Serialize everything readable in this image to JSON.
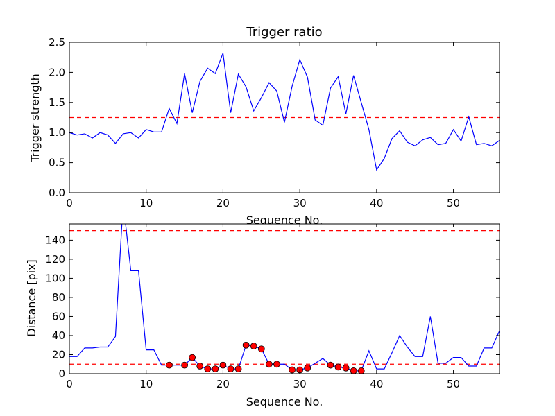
{
  "chart_data": [
    {
      "type": "line",
      "title": "Trigger ratio",
      "xlabel": "Sequence No.",
      "ylabel": "Trigger strength",
      "xlim": [
        0,
        56
      ],
      "ylim": [
        0,
        2.5
      ],
      "x_ticks": [
        0,
        10,
        20,
        30,
        40,
        50
      ],
      "y_ticks": [
        "0.0",
        "0.5",
        "1.0",
        "1.5",
        "2.0",
        "2.5"
      ],
      "grid": false,
      "threshold": 1.25,
      "series": [
        {
          "color": "#0000ff",
          "x": [
            0,
            1,
            2,
            3,
            4,
            5,
            6,
            7,
            8,
            9,
            10,
            11,
            12,
            13,
            14,
            15,
            16,
            17,
            18,
            19,
            20,
            21,
            22,
            23,
            24,
            25,
            26,
            27,
            28,
            29,
            30,
            31,
            32,
            33,
            34,
            35,
            36,
            37,
            38,
            39,
            40,
            41,
            42,
            43,
            44,
            45,
            46,
            47,
            48,
            49,
            50,
            51,
            52,
            53,
            54,
            55,
            56
          ],
          "y": [
            1.0,
            0.96,
            0.98,
            0.91,
            1.0,
            0.96,
            0.82,
            0.98,
            1.0,
            0.91,
            1.05,
            1.01,
            1.01,
            1.4,
            1.15,
            1.98,
            1.33,
            1.85,
            2.07,
            1.98,
            2.32,
            1.33,
            1.97,
            1.76,
            1.36,
            1.58,
            1.83,
            1.69,
            1.17,
            1.77,
            2.21,
            1.92,
            1.21,
            1.12,
            1.74,
            1.93,
            1.31,
            1.95,
            1.5,
            1.05,
            0.38,
            0.57,
            0.9,
            1.03,
            0.84,
            0.78,
            0.88,
            0.92,
            0.8,
            0.82,
            1.05,
            0.86,
            1.26,
            0.8,
            0.82,
            0.78,
            0.87
          ]
        }
      ]
    },
    {
      "type": "line",
      "title": "",
      "xlabel": "Sequence No.",
      "ylabel": "Distance [pix]",
      "xlim": [
        0,
        56
      ],
      "ylim": [
        0,
        157
      ],
      "x_ticks": [
        0,
        10,
        20,
        30,
        40,
        50
      ],
      "y_ticks": [
        0,
        20,
        40,
        60,
        80,
        100,
        120,
        140
      ],
      "grid": false,
      "thresholds": [
        10,
        150
      ],
      "series": [
        {
          "color": "#0000ff",
          "x": [
            0,
            1,
            2,
            3,
            4,
            5,
            6,
            7,
            8,
            9,
            10,
            11,
            12,
            13,
            14,
            15,
            16,
            17,
            18,
            19,
            20,
            21,
            22,
            23,
            24,
            25,
            26,
            27,
            28,
            29,
            30,
            31,
            32,
            33,
            34,
            35,
            36,
            37,
            38,
            39,
            40,
            41,
            42,
            43,
            44,
            45,
            46,
            47,
            48,
            49,
            50,
            51,
            52,
            53,
            54,
            55,
            56
          ],
          "y": [
            18,
            18,
            27,
            27,
            28,
            28,
            39,
            180,
            108,
            108,
            25,
            25,
            9,
            9,
            9,
            9,
            17,
            8,
            5,
            5,
            9,
            5,
            5,
            30,
            29,
            26,
            10,
            10,
            10,
            4,
            4,
            6,
            11,
            16,
            9,
            7,
            6,
            3,
            3,
            24,
            5,
            5,
            22,
            40,
            28,
            18,
            18,
            60,
            11,
            11,
            17,
            17,
            8,
            8,
            27,
            27,
            45
          ]
        },
        {
          "type": "scatter",
          "color": "#ff0000",
          "x": [
            13,
            15,
            16,
            17,
            18,
            19,
            20,
            21,
            22,
            23,
            24,
            25,
            26,
            27,
            29,
            30,
            31,
            34,
            35,
            36,
            37,
            38
          ],
          "y": [
            9,
            9,
            17,
            8,
            5,
            5,
            9,
            5,
            5,
            30,
            29,
            26,
            10,
            10,
            4,
            4,
            6,
            9,
            7,
            6,
            3,
            3
          ]
        }
      ]
    }
  ]
}
